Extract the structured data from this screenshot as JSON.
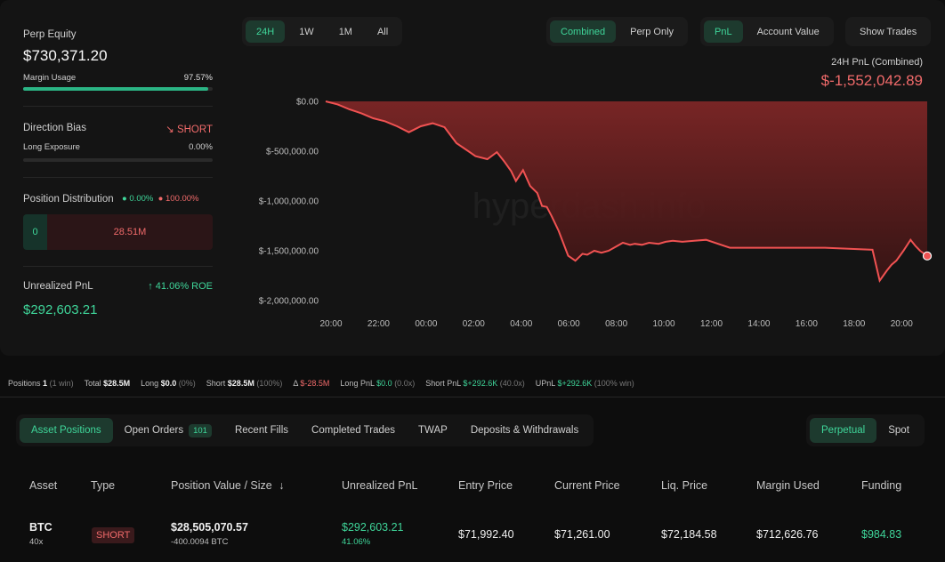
{
  "stats": {
    "perp_equity_label": "Perp Equity",
    "perp_equity_value": "$730,371.20",
    "margin_usage_label": "Margin Usage",
    "margin_usage_value": "97.57%",
    "margin_usage_fraction": 0.9757,
    "direction_bias_label": "Direction Bias",
    "direction_bias_value": "SHORT",
    "long_exposure_label": "Long Exposure",
    "long_exposure_value": "0.00%",
    "position_distribution_label": "Position Distribution",
    "pos_dist_long": "0.00%",
    "pos_dist_short": "100.00%",
    "dist_long_value": "0",
    "dist_short_value": "28.51M",
    "unrealized_pnl_label": "Unrealized PnL",
    "roe_value": "41.06% ROE",
    "unrealized_pnl_value": "$292,603.21"
  },
  "chart_controls": {
    "range_tabs": [
      "24H",
      "1W",
      "1M",
      "All"
    ],
    "range_active": "24H",
    "mode_tabs": [
      "Combined",
      "Perp Only"
    ],
    "mode_active": "Combined",
    "metric_tabs": [
      "PnL",
      "Account Value"
    ],
    "metric_active": "PnL",
    "show_trades_label": "Show Trades"
  },
  "chart_header": {
    "label": "24H PnL (Combined)",
    "value": "$-1,552,042.89"
  },
  "watermark": "hyperdash.info",
  "chart_data": {
    "type": "area",
    "x_unit": "hours",
    "y_ticks": [
      "$0.00",
      "$-500,000.00",
      "$-1,000,000.00",
      "$-1,500,000.00",
      "$-2,000,000.00"
    ],
    "x_ticks": [
      "20:00",
      "22:00",
      "00:00",
      "02:00",
      "04:00",
      "06:00",
      "08:00",
      "10:00",
      "12:00",
      "14:00",
      "16:00",
      "18:00",
      "20:00"
    ],
    "ylim": [
      -2000000,
      0
    ],
    "xlim": [
      0,
      25.3
    ],
    "x": [
      0,
      0.5,
      1,
      1.5,
      2,
      2.5,
      3,
      3.5,
      4,
      4.5,
      5,
      5.5,
      6,
      6.3,
      6.8,
      7.2,
      7.5,
      7.8,
      8,
      8.3,
      8.6,
      8.9,
      9.1,
      9.3,
      9.5,
      9.8,
      10.2,
      10.5,
      10.8,
      11,
      11.3,
      11.6,
      11.9,
      12.2,
      12.5,
      12.8,
      13,
      13.3,
      13.6,
      14,
      14.3,
      14.6,
      15,
      15.5,
      16,
      17,
      18,
      19,
      20,
      21,
      22,
      23,
      23.3,
      23.6,
      23.8,
      24,
      24.3,
      24.6,
      24.8,
      25,
      25.3
    ],
    "values": [
      0,
      -30000,
      -80000,
      -120000,
      -170000,
      -200000,
      -250000,
      -310000,
      -250000,
      -220000,
      -260000,
      -420000,
      -500000,
      -550000,
      -580000,
      -510000,
      -600000,
      -700000,
      -800000,
      -690000,
      -850000,
      -920000,
      -1050000,
      -1060000,
      -1150000,
      -1300000,
      -1550000,
      -1600000,
      -1530000,
      -1540000,
      -1500000,
      -1520000,
      -1500000,
      -1460000,
      -1420000,
      -1440000,
      -1430000,
      -1440000,
      -1420000,
      -1430000,
      -1410000,
      -1400000,
      -1410000,
      -1400000,
      -1390000,
      -1470000,
      -1470000,
      -1470000,
      -1470000,
      -1470000,
      -1480000,
      -1490000,
      -1800000,
      -1700000,
      -1640000,
      -1600000,
      -1500000,
      -1390000,
      -1450000,
      -1500000,
      -1552042.89
    ],
    "line_color": "#f05252",
    "fill_color": "#7a2424"
  },
  "summary": {
    "positions_label": "Positions",
    "positions_value": "1",
    "positions_note": "(1 win)",
    "total_label": "Total",
    "total_value": "$28.5M",
    "long_label": "Long",
    "long_value": "$0.0",
    "long_pct": "(0%)",
    "short_label": "Short",
    "short_value": "$28.5M",
    "short_pct": "(100%)",
    "delta_label": "Δ",
    "delta_value": "$-28.5M",
    "long_pnl_label": "Long PnL",
    "long_pnl_value": "$0.0",
    "long_pnl_note": "(0.0x)",
    "short_pnl_label": "Short PnL",
    "short_pnl_value": "$+292.6K",
    "short_pnl_note": "(40.0x)",
    "upnl_label": "UPnL",
    "upnl_value": "$+292.6K",
    "upnl_note": "(100% win)"
  },
  "tabs": {
    "items": [
      "Asset Positions",
      "Open Orders",
      "Recent Fills",
      "Completed Trades",
      "TWAP",
      "Deposits & Withdrawals"
    ],
    "open_orders_count": "101",
    "active": "Asset Positions",
    "market_tabs": [
      "Perpetual",
      "Spot"
    ],
    "market_active": "Perpetual"
  },
  "table": {
    "headers": [
      "Asset",
      "Type",
      "Position Value / Size",
      "Unrealized PnL",
      "Entry Price",
      "Current Price",
      "Liq. Price",
      "Margin Used",
      "Funding"
    ],
    "sort_arrow": "↓",
    "row": {
      "asset": "BTC",
      "leverage": "40x",
      "type": "SHORT",
      "position_value": "$28,505,070.57",
      "position_size": "-400.0094 BTC",
      "unrealized_pnl": "$292,603.21",
      "unrealized_pnl_pct": "41.06%",
      "entry_price": "$71,992.40",
      "current_price": "$71,261.00",
      "liq_price": "$72,184.58",
      "margin_used": "$712,626.76",
      "funding": "$984.83"
    }
  }
}
